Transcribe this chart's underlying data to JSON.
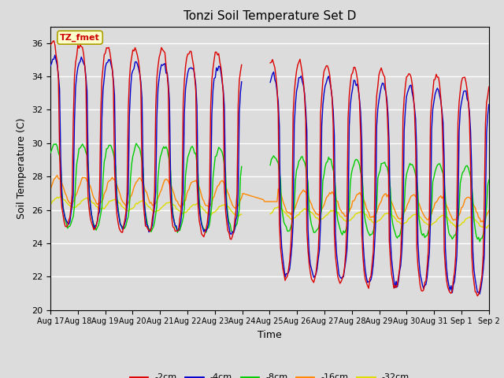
{
  "title": "Tonzi Soil Temperature Set D",
  "xlabel": "Time",
  "ylabel": "Soil Temperature (C)",
  "ylim": [
    20,
    37
  ],
  "yticks": [
    20,
    22,
    24,
    26,
    28,
    30,
    32,
    34,
    36
  ],
  "annotation_text": "TZ_fmet",
  "annotation_color": "#cc0000",
  "annotation_bg": "#ffffcc",
  "bg_color": "#dcdcdc",
  "plot_bg": "#dcdcdc",
  "line_colors": {
    "-2cm": "#dd0000",
    "-4cm": "#0000cc",
    "-8cm": "#00cc00",
    "-16cm": "#ff8800",
    "-32cm": "#dddd00"
  },
  "legend_labels": [
    "-2cm",
    "-4cm",
    "-8cm",
    "-16cm",
    "-32cm"
  ]
}
